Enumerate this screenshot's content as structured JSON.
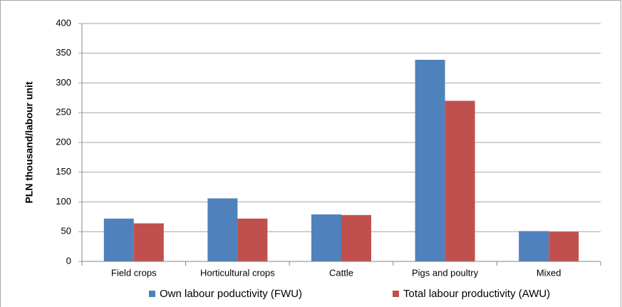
{
  "chart_data": {
    "type": "bar",
    "y_label": "PLN thousand/labour unit",
    "categories": [
      "Field crops",
      "Horticultural crops",
      "Cattle",
      "Pigs and poultry",
      "Mixed"
    ],
    "series": [
      {
        "name": "Own labour poductivity (FWU)",
        "color": "#4f81bd",
        "values": [
          72,
          106,
          79,
          339,
          51
        ]
      },
      {
        "name": "Total labour productivity (AWU)",
        "color": "#c0504d",
        "values": [
          64,
          72,
          78,
          270,
          50
        ]
      }
    ],
    "ylim": [
      0,
      400
    ],
    "yticks": [
      0,
      50,
      100,
      150,
      200,
      250,
      300,
      350,
      400
    ],
    "grid": true,
    "legend": "bottom"
  }
}
